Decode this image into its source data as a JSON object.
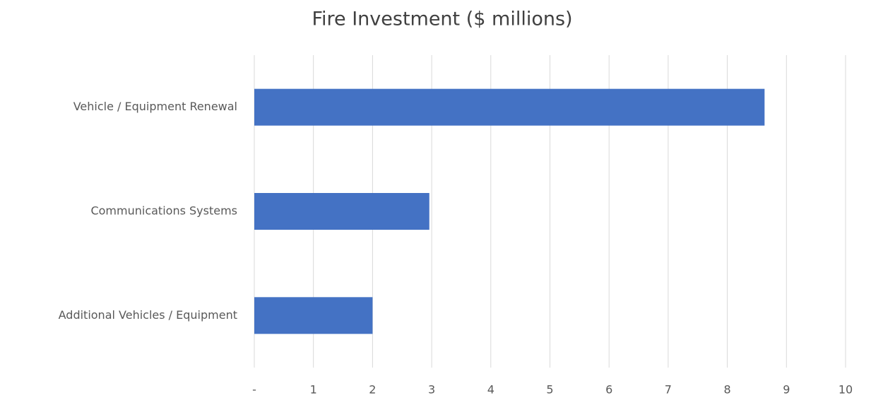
{
  "chart_data": {
    "type": "barh",
    "title": "Fire Investment ($ millions)",
    "categories": [
      "Vehicle / Equipment Renewal",
      "Communications Systems",
      "Additional Vehicles / Equipment"
    ],
    "values": [
      8.63,
      2.96,
      2.0
    ],
    "color": "#4472c4",
    "xlim": [
      0,
      10
    ],
    "xticks": [
      {
        "value": 0,
        "label": "-"
      },
      1,
      2,
      3,
      4,
      5,
      6,
      7,
      8,
      9,
      10
    ],
    "grid": true
  }
}
